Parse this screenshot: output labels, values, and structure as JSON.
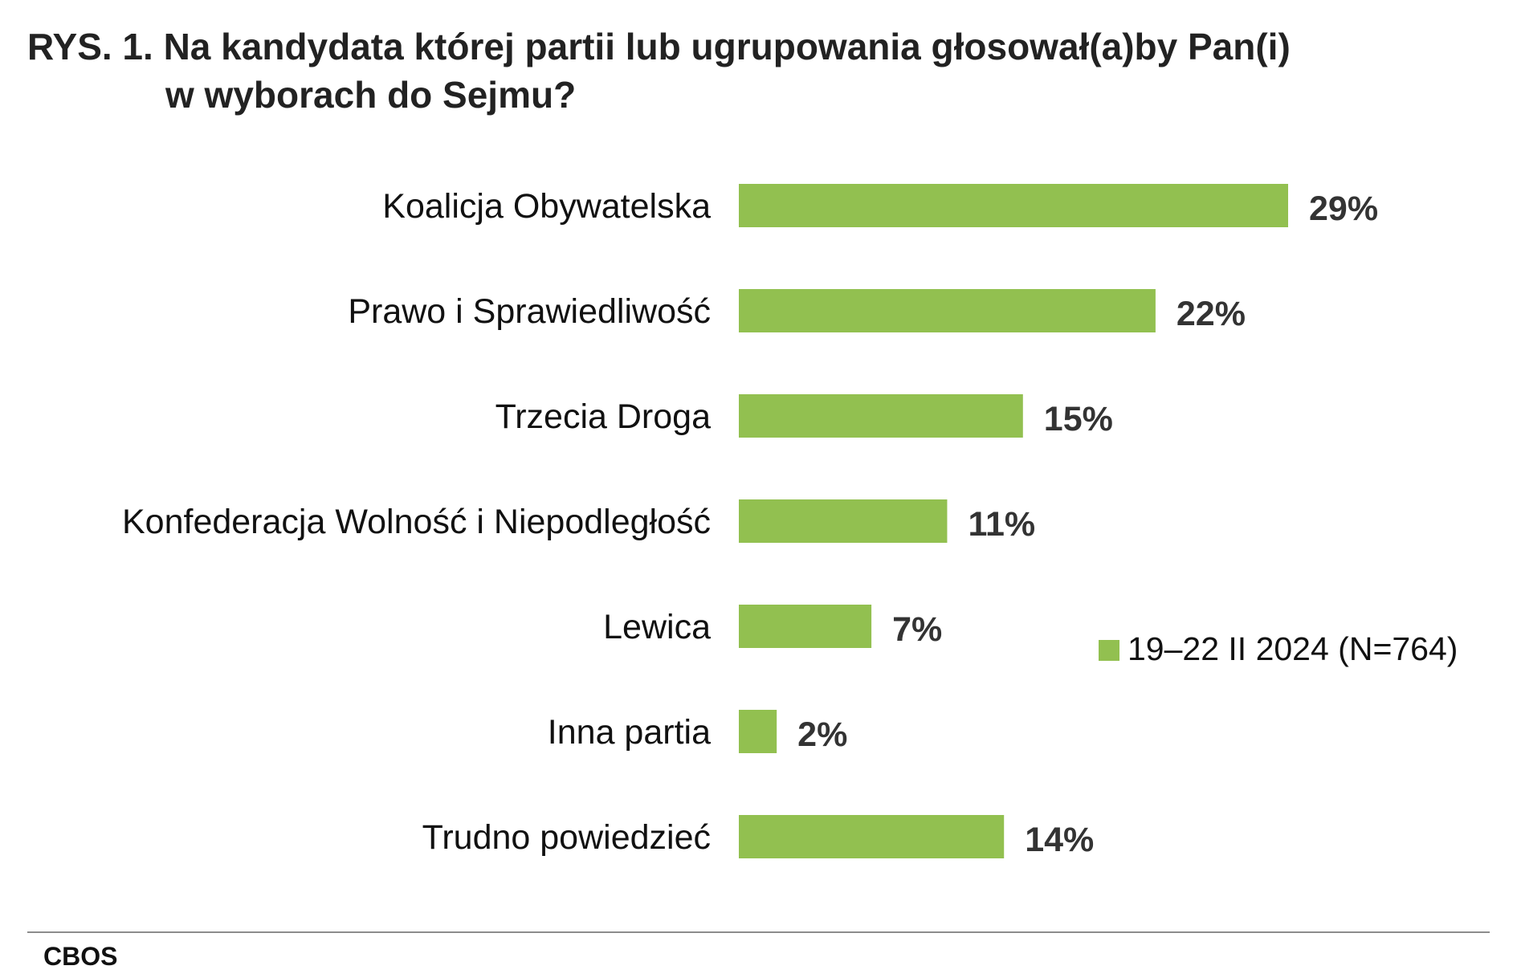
{
  "title": {
    "line1": "RYS. 1. Na kandydata której partii lub ugrupowania głosował(a)by Pan(i)",
    "line2": "w wyborach do Sejmu?"
  },
  "source": "CBOS",
  "colors": {
    "bar": "#92c050"
  },
  "chart_data": {
    "type": "bar",
    "orientation": "horizontal",
    "title": "RYS. 1. Na kandydata której partii lub ugrupowania głosował(a)by Pan(i) w wyborach do Sejmu?",
    "categories": [
      "Koalicja Obywatelska",
      "Prawo i Sprawiedliwość",
      "Trzecia Droga",
      "Konfederacja Wolność i Niepodległość",
      "Lewica",
      "Inna partia",
      "Trudno powiedzieć"
    ],
    "series": [
      {
        "name": "19–22 II 2024 (N=764)",
        "values": [
          29,
          22,
          15,
          11,
          7,
          2,
          14
        ],
        "labels": [
          "29%",
          "22%",
          "15%",
          "11%",
          "7%",
          "2%",
          "14%"
        ]
      }
    ],
    "xlim": [
      0,
      29
    ],
    "grid": false,
    "legend": "right"
  }
}
